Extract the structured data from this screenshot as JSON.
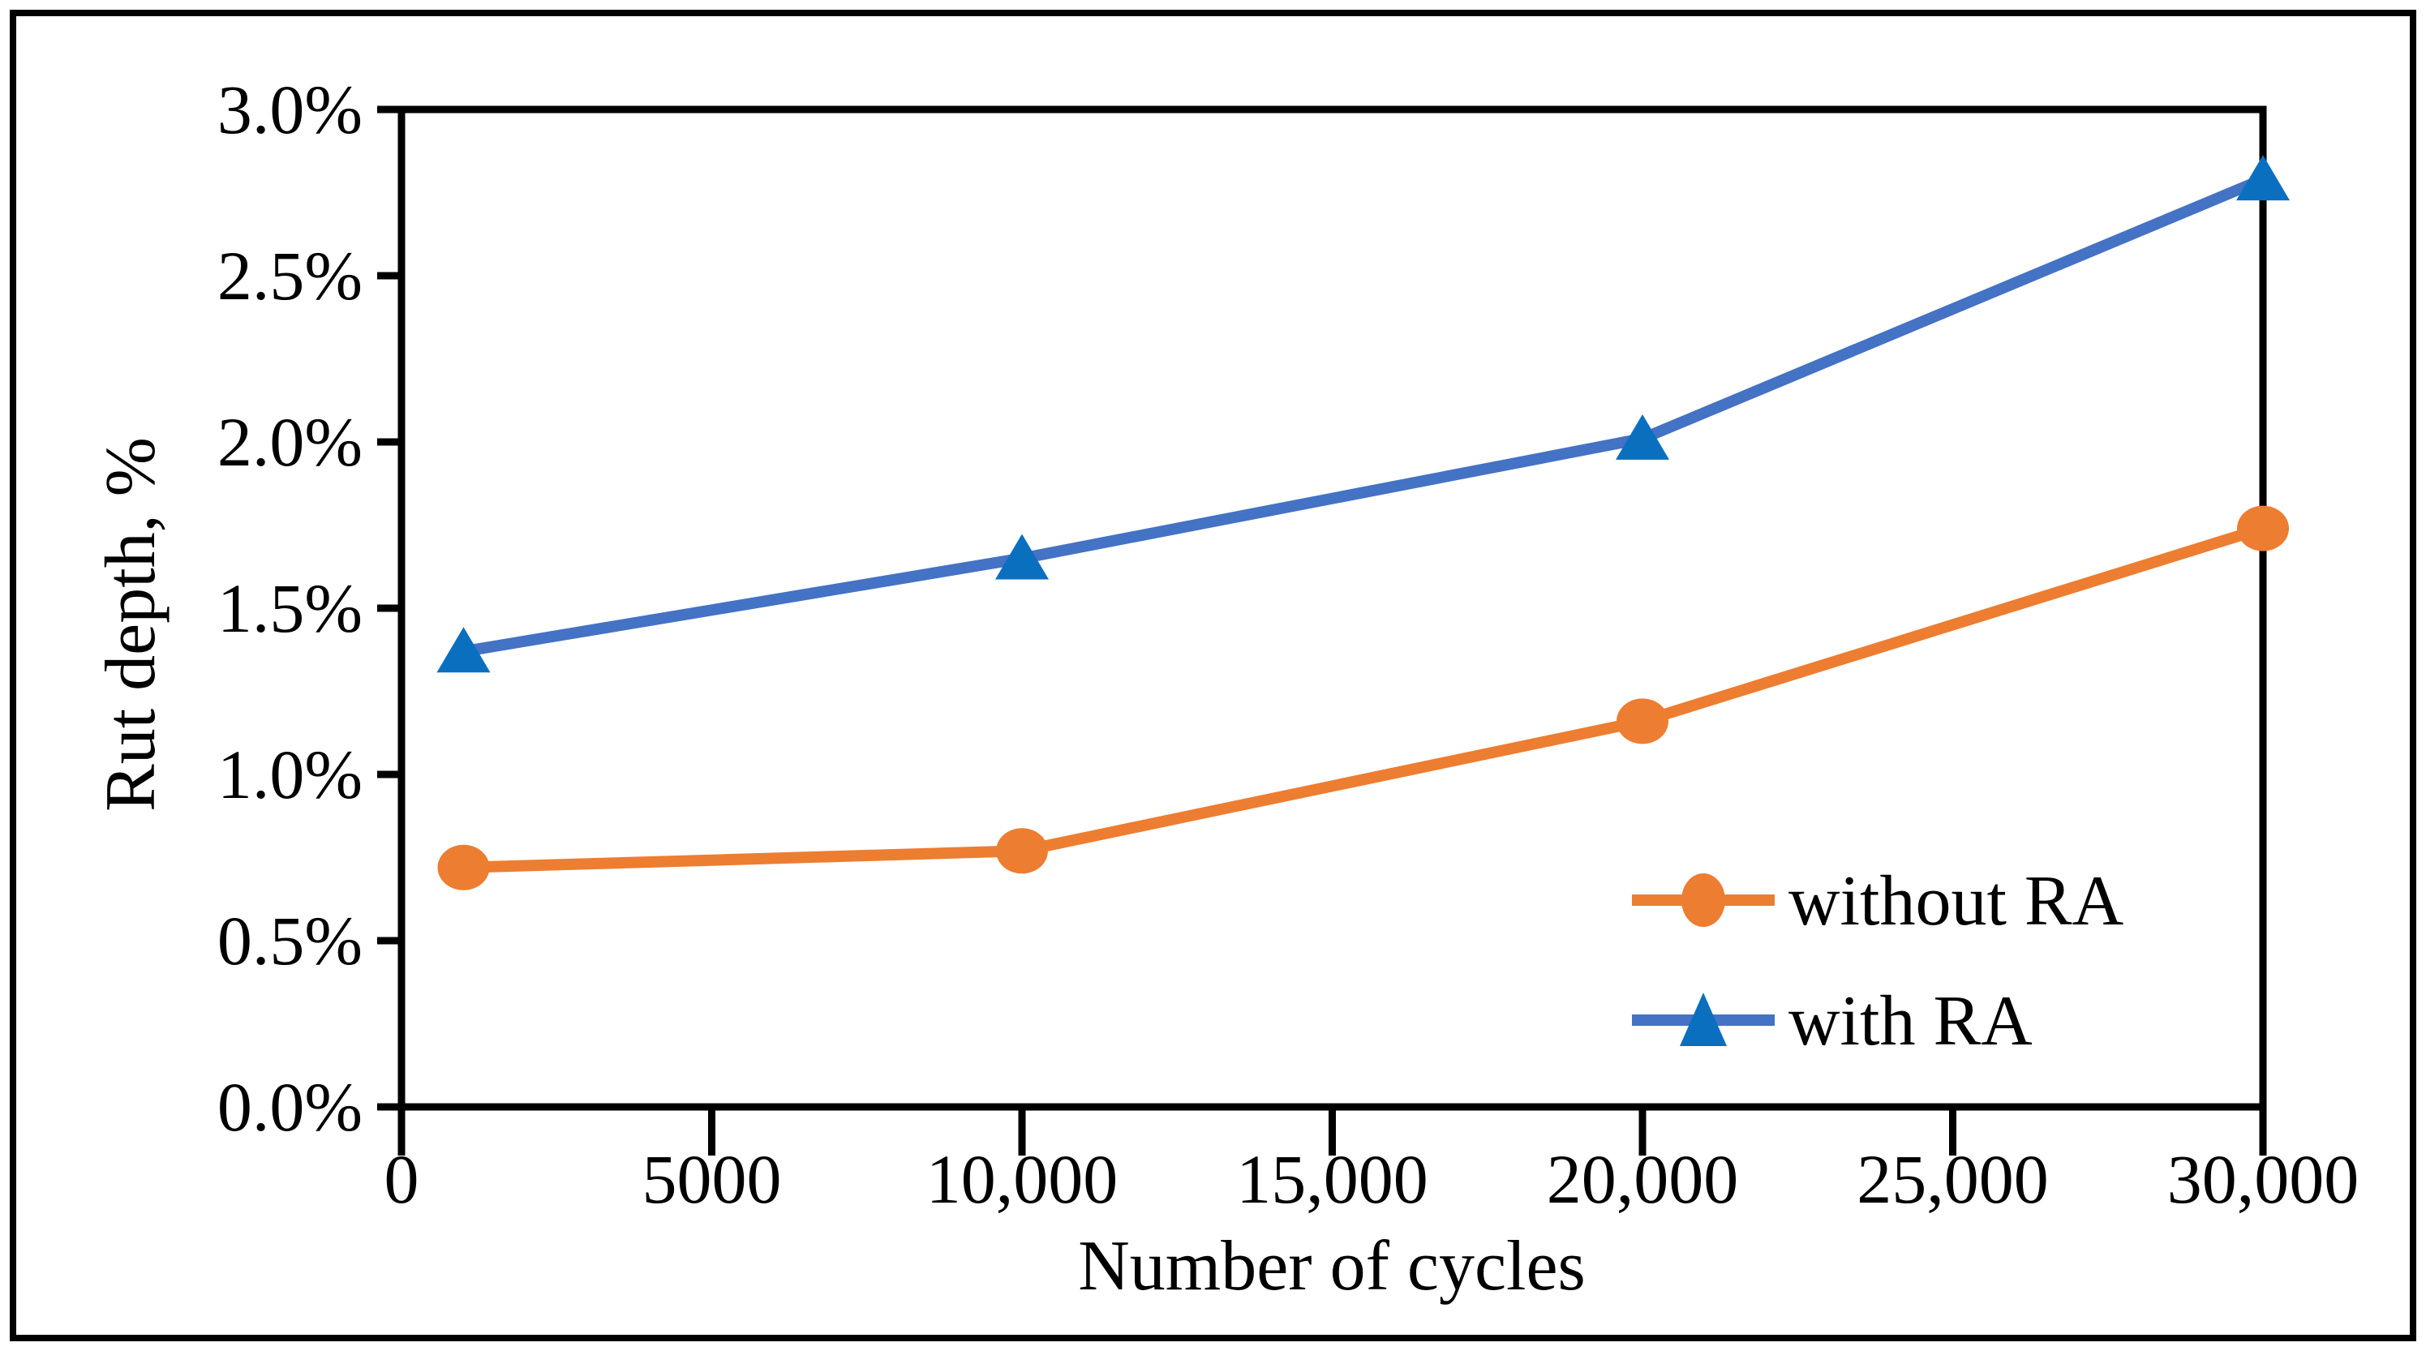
{
  "figure": {
    "background": "#ffffff",
    "border_color": "#000000",
    "axis_color": "#000000"
  },
  "chart_data": {
    "type": "line",
    "title": "",
    "xlabel": "Number of cycles",
    "ylabel": "Rut depth, %",
    "x": [
      1000,
      10000,
      20000,
      30000
    ],
    "series": [
      {
        "name": "without RA",
        "marker": "circle",
        "line_color": "#ED7D31",
        "marker_color": "#ED7D31",
        "values": [
          0.72,
          0.77,
          1.16,
          1.74
        ]
      },
      {
        "name": "with RA",
        "marker": "triangle",
        "line_color": "#4472C4",
        "marker_color": "#0B6FC0",
        "values": [
          1.37,
          1.65,
          2.01,
          2.79
        ]
      }
    ],
    "xlim": [
      0,
      30000
    ],
    "ylim": [
      0,
      3.0
    ],
    "x_ticks": {
      "values": [
        0,
        5000,
        10000,
        15000,
        20000,
        25000,
        30000
      ],
      "labels": [
        "0",
        "5000",
        "10,000",
        "15,000",
        "20,000",
        "25,000",
        "30,000"
      ]
    },
    "y_ticks": {
      "values": [
        0,
        0.5,
        1.0,
        1.5,
        2.0,
        2.5,
        3.0
      ],
      "labels": [
        "0.0%",
        "0.5%",
        "1.0%",
        "1.5%",
        "2.0%",
        "2.5%",
        "3.0%"
      ]
    },
    "grid": false,
    "legend_position": "inside lower right"
  },
  "legend": {
    "items": [
      {
        "label": "without RA"
      },
      {
        "label": "with RA"
      }
    ]
  },
  "axes": {
    "x_title": "Number of cycles",
    "y_title": "Rut depth, %"
  }
}
